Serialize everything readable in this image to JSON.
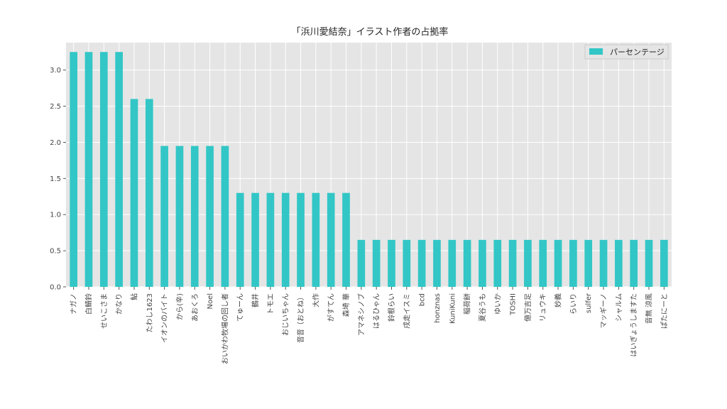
{
  "chart_data": {
    "type": "bar",
    "title": "「浜川愛結奈」イラスト作者の占拠率",
    "xlabel": "",
    "ylabel": "",
    "ylim": [
      0,
      3.38
    ],
    "yticks": [
      "0.0",
      "0.5",
      "1.0",
      "1.5",
      "2.0",
      "2.5",
      "3.0"
    ],
    "grid": true,
    "legend": {
      "position": "top-right"
    },
    "series": [
      {
        "name": "パーセンテージ",
        "color": "#33c6c6",
        "values": [
          3.25,
          3.25,
          3.25,
          3.25,
          2.6,
          2.6,
          1.95,
          1.95,
          1.95,
          1.95,
          1.95,
          1.3,
          1.3,
          1.3,
          1.3,
          1.3,
          1.3,
          1.3,
          1.3,
          0.65,
          0.65,
          0.65,
          0.65,
          0.65,
          0.65,
          0.65,
          0.65,
          0.65,
          0.65,
          0.65,
          0.65,
          0.65,
          0.65,
          0.65,
          0.65,
          0.65,
          0.65,
          0.65,
          0.65,
          0.65
        ]
      }
    ],
    "categories": [
      "ナガノ",
      "白鯖鈴",
      "せいこさま",
      "かなり",
      "鮎",
      "たわし1623",
      "イオンのバイト",
      "から(辛)",
      "あおくろ",
      "Noel",
      "おいかわ牧場の回し者",
      "てゅーん",
      "鶴井",
      "トモエ",
      "おじいちゃん",
      "音音（おとね）",
      "大作",
      "がすてん",
      "森埼 華",
      "アマネシノブ",
      "はるひゃん",
      "鈴根らい",
      "戌走イスミ",
      "bcd",
      "honznas",
      "KuniKuni",
      "稲荷餅",
      "夏谷うも",
      "ゆいか",
      "TOSHI",
      "億万吉足",
      "リュウキ",
      "妙義",
      "らいり",
      "sulfer",
      "マッギーノ",
      "シャルム",
      "はいぎょうしますた",
      "音無 涼風",
      "ぱたにーと"
    ]
  }
}
